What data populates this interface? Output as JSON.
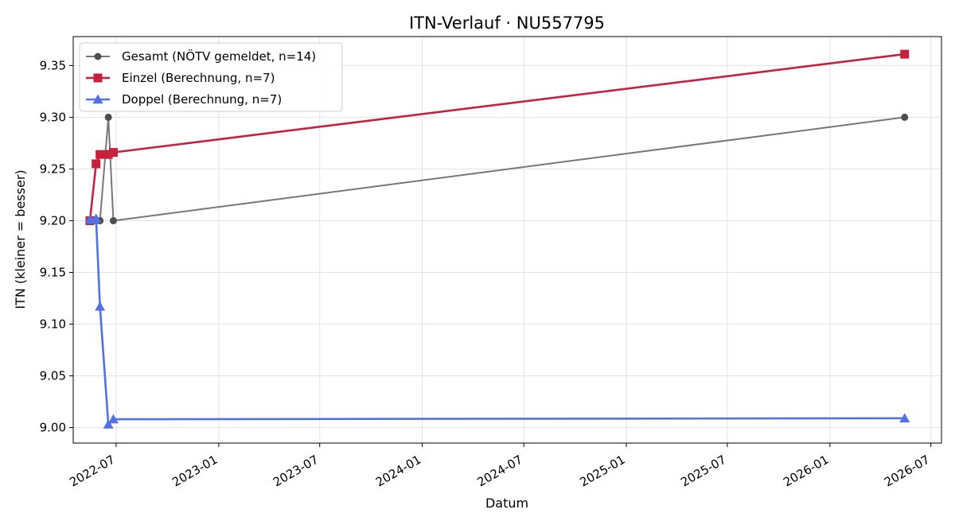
{
  "chart_data": {
    "type": "line",
    "title": "ITN-Verlauf · NU557795",
    "xlabel": "Datum",
    "ylabel": "ITN  (kleiner = besser)",
    "x_ticks": [
      "2022-07",
      "2023-01",
      "2023-07",
      "2024-01",
      "2024-07",
      "2025-01",
      "2025-07",
      "2026-01",
      "2026-07"
    ],
    "y_ticks": [
      "9.00",
      "9.05",
      "9.10",
      "9.15",
      "9.20",
      "9.25",
      "9.30",
      "9.35"
    ],
    "xlim": [
      "2022-04-15",
      "2026-07-20"
    ],
    "ylim": [
      8.985,
      9.378
    ],
    "grid": true,
    "legend_position": "top-left",
    "series": [
      {
        "name": "Gesamt (NÖTV gemeldet, n=14)",
        "color": "#777777",
        "marker_color": "#4d4d4d",
        "marker": "circle",
        "points": [
          {
            "x": "2022-05-15",
            "y": 9.2
          },
          {
            "x": "2022-05-26",
            "y": 9.2
          },
          {
            "x": "2022-06-02",
            "y": 9.2
          },
          {
            "x": "2022-06-17",
            "y": 9.3
          },
          {
            "x": "2022-06-26",
            "y": 9.2
          },
          {
            "x": "2026-05-15",
            "y": 9.3
          }
        ]
      },
      {
        "name": "Einzel (Berechnung, n=7)",
        "color": "#c8203c",
        "marker_color": "#c8203c",
        "marker": "square",
        "points": [
          {
            "x": "2022-05-15",
            "y": 9.2
          },
          {
            "x": "2022-05-26",
            "y": 9.255
          },
          {
            "x": "2022-06-02",
            "y": 9.264
          },
          {
            "x": "2022-06-17",
            "y": 9.264
          },
          {
            "x": "2022-06-26",
            "y": 9.266
          },
          {
            "x": "2026-05-15",
            "y": 9.361
          }
        ]
      },
      {
        "name": "Doppel (Berechnung, n=7)",
        "color": "#5270e8",
        "marker_color": "#5270e8",
        "marker": "triangle",
        "points": [
          {
            "x": "2022-05-15",
            "y": 9.201
          },
          {
            "x": "2022-05-26",
            "y": 9.202
          },
          {
            "x": "2022-06-02",
            "y": 9.117
          },
          {
            "x": "2022-06-17",
            "y": 9.003
          },
          {
            "x": "2022-06-26",
            "y": 9.008
          },
          {
            "x": "2026-05-15",
            "y": 9.009
          }
        ]
      }
    ]
  }
}
